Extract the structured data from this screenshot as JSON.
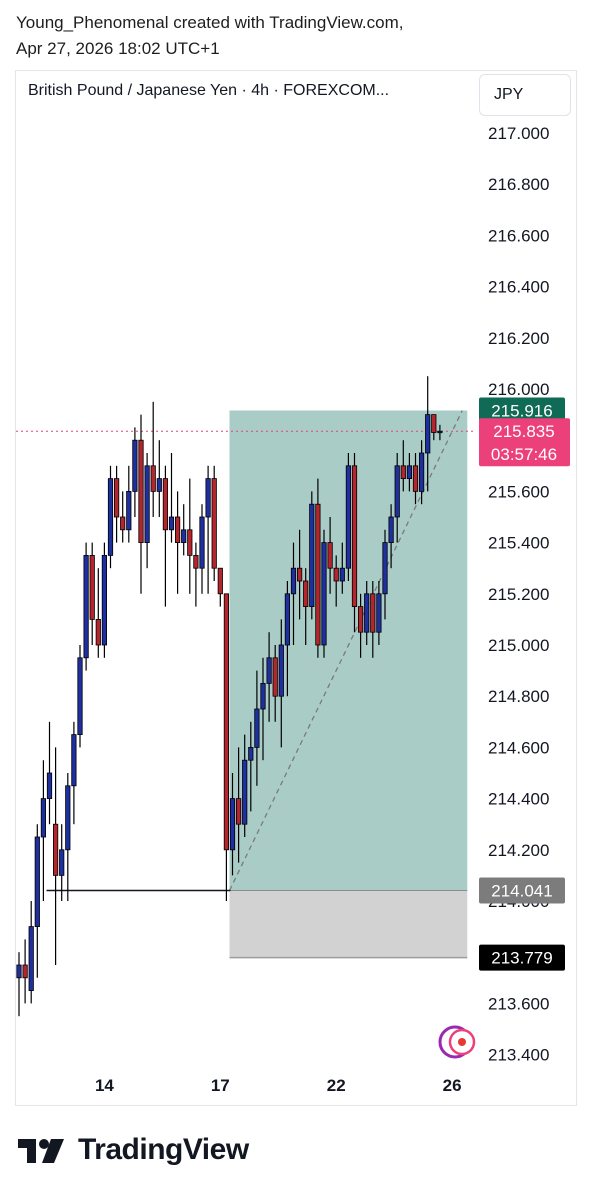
{
  "caption": {
    "line1": "Young_Phenomenal created with TradingView.com,",
    "line2": "Apr 27, 2026 18:02 UTC+1"
  },
  "header": {
    "title": "British Pound / Japanese Yen · 4h · FOREXCOM...",
    "currency": "JPY"
  },
  "brand": {
    "name": "TradingView",
    "logo_icon": "tradingview-logo-icon"
  },
  "colors": {
    "bull_body": "#1e2fa0",
    "bear_body": "#b3262d",
    "wick": "#000000",
    "profit_zone": "#aaccc7",
    "loss_zone": "#d2d2d2",
    "last_price_bg": "#ec407a",
    "target_bg": "#0f6b55",
    "entry_bg": "#7c7c7c",
    "stop_bg": "#000000",
    "price_line": "#e0457b"
  },
  "chart_data": {
    "type": "candlestick",
    "title": "British Pound / Japanese Yen · 4h · FOREXCOM...",
    "symbol": "GBPJPY",
    "interval": "4h",
    "ylim": [
      213.3,
      217.1
    ],
    "y_ticks": [
      "217.000",
      "216.800",
      "216.600",
      "216.400",
      "216.200",
      "216.000",
      "215.800",
      "215.600",
      "215.400",
      "215.200",
      "215.000",
      "214.800",
      "214.600",
      "214.400",
      "214.200",
      "214.000",
      "213.800",
      "213.600",
      "213.400"
    ],
    "x_ticks": [
      {
        "label": "14",
        "index": 14
      },
      {
        "label": "17",
        "index": 33
      },
      {
        "label": "22",
        "index": 52
      },
      {
        "label": "26",
        "index": 71
      }
    ],
    "last_price": {
      "value": "215.835",
      "countdown": "03:57:46"
    },
    "position": {
      "type": "long",
      "entry": 214.041,
      "target": 215.916,
      "stop": 213.779,
      "start_index": 35,
      "end_index": 73,
      "entry_label": "214.041",
      "target_label": "215.916",
      "stop_label": "213.779"
    },
    "horizontal_line": {
      "value": 214.041,
      "start_index": 5
    },
    "candles": [
      {
        "o": 213.7,
        "h": 213.8,
        "l": 213.55,
        "c": 213.75
      },
      {
        "o": 213.75,
        "h": 213.85,
        "l": 213.6,
        "c": 213.7
      },
      {
        "o": 213.65,
        "h": 214.0,
        "l": 213.6,
        "c": 213.9
      },
      {
        "o": 213.9,
        "h": 214.3,
        "l": 213.7,
        "c": 214.25
      },
      {
        "o": 214.25,
        "h": 214.55,
        "l": 214.0,
        "c": 214.4
      },
      {
        "o": 214.4,
        "h": 214.7,
        "l": 214.3,
        "c": 214.5
      },
      {
        "o": 214.3,
        "h": 214.6,
        "l": 213.75,
        "c": 214.1
      },
      {
        "o": 214.1,
        "h": 214.3,
        "l": 214.0,
        "c": 214.2
      },
      {
        "o": 214.2,
        "h": 214.5,
        "l": 214.0,
        "c": 214.45
      },
      {
        "o": 214.45,
        "h": 214.7,
        "l": 214.3,
        "c": 214.65
      },
      {
        "o": 214.65,
        "h": 215.0,
        "l": 214.6,
        "c": 214.95
      },
      {
        "o": 214.95,
        "h": 215.4,
        "l": 214.9,
        "c": 215.35
      },
      {
        "o": 215.35,
        "h": 215.4,
        "l": 215.0,
        "c": 215.1
      },
      {
        "o": 215.1,
        "h": 215.3,
        "l": 214.95,
        "c": 215.0
      },
      {
        "o": 215.0,
        "h": 215.4,
        "l": 214.95,
        "c": 215.35
      },
      {
        "o": 215.35,
        "h": 215.7,
        "l": 215.3,
        "c": 215.65
      },
      {
        "o": 215.65,
        "h": 215.7,
        "l": 215.4,
        "c": 215.5
      },
      {
        "o": 215.5,
        "h": 215.6,
        "l": 215.4,
        "c": 215.45
      },
      {
        "o": 215.45,
        "h": 215.7,
        "l": 215.4,
        "c": 215.6
      },
      {
        "o": 215.6,
        "h": 215.85,
        "l": 215.5,
        "c": 215.8
      },
      {
        "o": 215.8,
        "h": 215.9,
        "l": 215.2,
        "c": 215.4
      },
      {
        "o": 215.4,
        "h": 215.75,
        "l": 215.3,
        "c": 215.7
      },
      {
        "o": 215.7,
        "h": 215.95,
        "l": 215.5,
        "c": 215.6
      },
      {
        "o": 215.6,
        "h": 215.8,
        "l": 215.5,
        "c": 215.65
      },
      {
        "o": 215.65,
        "h": 215.7,
        "l": 215.15,
        "c": 215.45
      },
      {
        "o": 215.45,
        "h": 215.75,
        "l": 215.4,
        "c": 215.5
      },
      {
        "o": 215.5,
        "h": 215.6,
        "l": 215.2,
        "c": 215.4
      },
      {
        "o": 215.4,
        "h": 215.55,
        "l": 215.35,
        "c": 215.45
      },
      {
        "o": 215.45,
        "h": 215.65,
        "l": 215.2,
        "c": 215.35
      },
      {
        "o": 215.35,
        "h": 215.4,
        "l": 215.15,
        "c": 215.3
      },
      {
        "o": 215.3,
        "h": 215.55,
        "l": 215.2,
        "c": 215.5
      },
      {
        "o": 215.5,
        "h": 215.7,
        "l": 215.2,
        "c": 215.65
      },
      {
        "o": 215.65,
        "h": 215.7,
        "l": 215.25,
        "c": 215.3
      },
      {
        "o": 215.3,
        "h": 215.3,
        "l": 215.15,
        "c": 215.2
      },
      {
        "o": 215.2,
        "h": 215.2,
        "l": 214.0,
        "c": 214.2
      },
      {
        "o": 214.2,
        "h": 214.5,
        "l": 214.1,
        "c": 214.4
      },
      {
        "o": 214.4,
        "h": 214.6,
        "l": 214.15,
        "c": 214.3
      },
      {
        "o": 214.3,
        "h": 214.65,
        "l": 214.25,
        "c": 214.55
      },
      {
        "o": 214.55,
        "h": 214.7,
        "l": 214.35,
        "c": 214.6
      },
      {
        "o": 214.6,
        "h": 214.9,
        "l": 214.45,
        "c": 214.75
      },
      {
        "o": 214.75,
        "h": 214.95,
        "l": 214.55,
        "c": 214.85
      },
      {
        "o": 214.85,
        "h": 215.05,
        "l": 214.7,
        "c": 214.95
      },
      {
        "o": 214.95,
        "h": 215.0,
        "l": 214.7,
        "c": 214.8
      },
      {
        "o": 214.8,
        "h": 215.1,
        "l": 214.6,
        "c": 215.0
      },
      {
        "o": 215.0,
        "h": 215.25,
        "l": 214.8,
        "c": 215.2
      },
      {
        "o": 215.2,
        "h": 215.4,
        "l": 215.0,
        "c": 215.3
      },
      {
        "o": 215.3,
        "h": 215.45,
        "l": 215.1,
        "c": 215.25
      },
      {
        "o": 215.25,
        "h": 215.3,
        "l": 215.0,
        "c": 215.15
      },
      {
        "o": 215.15,
        "h": 215.6,
        "l": 215.1,
        "c": 215.55
      },
      {
        "o": 215.55,
        "h": 215.65,
        "l": 214.95,
        "c": 215.0
      },
      {
        "o": 215.0,
        "h": 215.45,
        "l": 214.95,
        "c": 215.4
      },
      {
        "o": 215.4,
        "h": 215.5,
        "l": 215.2,
        "c": 215.3
      },
      {
        "o": 215.3,
        "h": 215.35,
        "l": 215.15,
        "c": 215.25
      },
      {
        "o": 215.25,
        "h": 215.4,
        "l": 215.2,
        "c": 215.3
      },
      {
        "o": 215.3,
        "h": 215.75,
        "l": 215.25,
        "c": 215.7
      },
      {
        "o": 215.7,
        "h": 215.75,
        "l": 215.05,
        "c": 215.15
      },
      {
        "o": 215.15,
        "h": 215.2,
        "l": 214.95,
        "c": 215.05
      },
      {
        "o": 215.05,
        "h": 215.25,
        "l": 215.0,
        "c": 215.2
      },
      {
        "o": 215.2,
        "h": 215.25,
        "l": 214.95,
        "c": 215.05
      },
      {
        "o": 215.05,
        "h": 215.25,
        "l": 215.0,
        "c": 215.2
      },
      {
        "o": 215.2,
        "h": 215.45,
        "l": 215.1,
        "c": 215.4
      },
      {
        "o": 215.4,
        "h": 215.55,
        "l": 215.3,
        "c": 215.5
      },
      {
        "o": 215.5,
        "h": 215.75,
        "l": 215.4,
        "c": 215.7
      },
      {
        "o": 215.7,
        "h": 215.8,
        "l": 215.6,
        "c": 215.65
      },
      {
        "o": 215.65,
        "h": 215.75,
        "l": 215.6,
        "c": 215.7
      },
      {
        "o": 215.7,
        "h": 215.75,
        "l": 215.55,
        "c": 215.6
      },
      {
        "o": 215.6,
        "h": 215.8,
        "l": 215.55,
        "c": 215.75
      },
      {
        "o": 215.75,
        "h": 216.05,
        "l": 215.6,
        "c": 215.9
      },
      {
        "o": 215.9,
        "h": 215.9,
        "l": 215.8,
        "c": 215.83
      },
      {
        "o": 215.83,
        "h": 215.86,
        "l": 215.8,
        "c": 215.835
      }
    ]
  }
}
